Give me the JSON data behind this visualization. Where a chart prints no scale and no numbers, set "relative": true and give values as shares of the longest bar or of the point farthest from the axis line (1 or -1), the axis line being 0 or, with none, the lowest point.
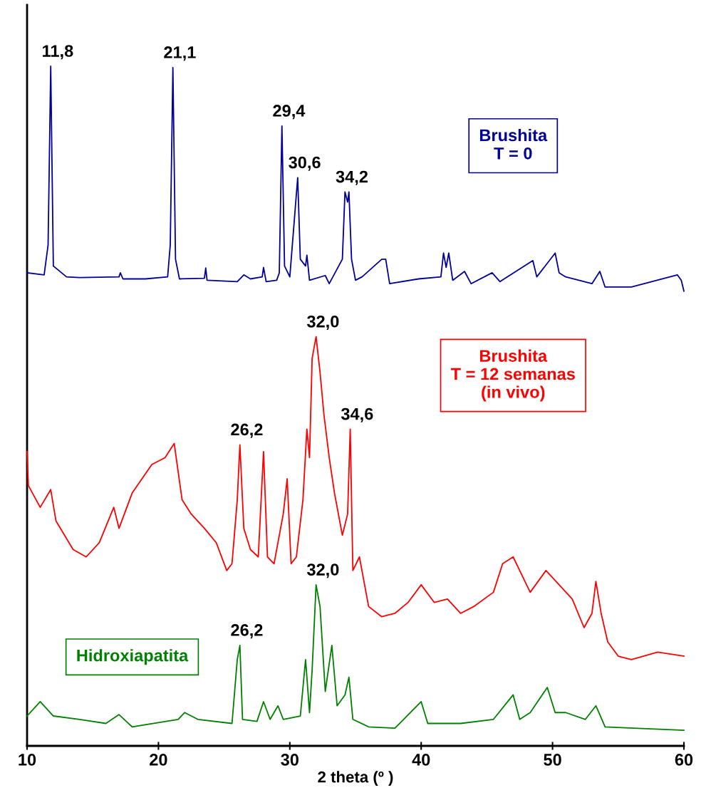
{
  "chart_data": {
    "type": "line",
    "relative": true,
    "xlabel": "2 theta (º )",
    "xlim": [
      10,
      60
    ],
    "xticks": [
      10,
      20,
      30,
      40,
      50,
      60
    ],
    "grid": false,
    "series": [
      {
        "name": "Brushita\nT = 0",
        "color": "#000099",
        "x": [
          10,
          11.3,
          11.6,
          11.8,
          12.0,
          13,
          14,
          17,
          17.1,
          17.3,
          19,
          20.7,
          20.9,
          21.1,
          21.3,
          21.6,
          23.5,
          23.6,
          23.7,
          26,
          26.5,
          27,
          27.9,
          28,
          28.2,
          29,
          29.2,
          29.4,
          29.6,
          30.0,
          30.6,
          30.8,
          31.2,
          31.3,
          31.5,
          32.7,
          33,
          34.0,
          34.2,
          34.4,
          34.5,
          34.7,
          35,
          35.5,
          37,
          37.3,
          37.6,
          39.8,
          41.5,
          41.7,
          41.9,
          42.1,
          42.4,
          43.3,
          43.8,
          45.4,
          46,
          48.5,
          48.8,
          50.2,
          50.5,
          51,
          53,
          53.6,
          54,
          56,
          59.5,
          59.8,
          60
        ],
        "values": [
          0.696,
          0.693,
          0.737,
          1,
          0.706,
          0.69,
          0.689,
          0.69,
          0.696,
          0.687,
          0.687,
          0.69,
          0.737,
          0.998,
          0.716,
          0.687,
          0.688,
          0.703,
          0.685,
          0.683,
          0.693,
          0.687,
          0.69,
          0.704,
          0.683,
          0.685,
          0.696,
          0.912,
          0.706,
          0.69,
          0.836,
          0.716,
          0.706,
          0.722,
          0.685,
          0.692,
          0.68,
          0.716,
          0.815,
          0.8,
          0.815,
          0.716,
          0.685,
          0.69,
          0.716,
          0.716,
          0.68,
          0.687,
          0.69,
          0.725,
          0.704,
          0.725,
          0.685,
          0.698,
          0.68,
          0.696,
          0.683,
          0.714,
          0.69,
          0.725,
          0.696,
          0.69,
          0.68,
          0.698,
          0.675,
          0.675,
          0.693,
          0.685,
          0.669
        ]
      },
      {
        "name": "Brushita\nT = 12 semanas\n(in vivo)",
        "color": "#ff0000",
        "x": [
          10,
          10.1,
          11,
          11.8,
          12.2,
          13.5,
          14.5,
          15.5,
          16.6,
          17,
          18,
          19.5,
          20.5,
          21.2,
          21.8,
          22.5,
          23.5,
          24.4,
          25.2,
          25.6,
          26.0,
          26.2,
          26.5,
          27,
          27.6,
          28,
          28.3,
          28.8,
          29.5,
          29.8,
          30.1,
          30.5,
          31.0,
          31.3,
          31.5,
          31.7,
          32.0,
          32.3,
          32.6,
          33,
          33.4,
          34,
          34.4,
          34.6,
          34.8,
          35.3,
          36,
          37,
          38,
          39,
          40,
          41,
          42,
          43,
          44,
          45.5,
          46.2,
          47,
          47.5,
          48.3,
          49.5,
          50.5,
          51.5,
          52.4,
          53,
          53.3,
          53.7,
          54.2,
          55,
          56,
          58,
          60
        ],
        "values": [
          0.433,
          0.383,
          0.351,
          0.377,
          0.331,
          0.289,
          0.278,
          0.299,
          0.351,
          0.32,
          0.372,
          0.414,
          0.424,
          0.445,
          0.362,
          0.341,
          0.32,
          0.299,
          0.258,
          0.268,
          0.362,
          0.443,
          0.32,
          0.289,
          0.278,
          0.433,
          0.278,
          0.268,
          0.341,
          0.393,
          0.268,
          0.278,
          0.362,
          0.466,
          0.424,
          0.57,
          0.602,
          0.55,
          0.487,
          0.424,
          0.372,
          0.31,
          0.341,
          0.466,
          0.258,
          0.278,
          0.205,
          0.19,
          0.195,
          0.211,
          0.237,
          0.211,
          0.216,
          0.195,
          0.205,
          0.226,
          0.268,
          0.278,
          0.258,
          0.226,
          0.258,
          0.237,
          0.216,
          0.174,
          0.195,
          0.242,
          0.195,
          0.153,
          0.132,
          0.127,
          0.138,
          0.132
        ]
      },
      {
        "name": "Hidroxiapatita",
        "color": "#008000",
        "x": [
          10,
          11,
          12,
          14,
          16,
          17,
          18,
          21.5,
          22,
          23,
          25.6,
          26.0,
          26.2,
          26.4,
          27.5,
          28,
          28.5,
          29.1,
          29.5,
          30.8,
          31.2,
          31.5,
          31.7,
          32.0,
          32.3,
          32.7,
          33.2,
          33.6,
          34.2,
          34.5,
          34.8,
          36,
          38,
          40,
          40.5,
          43,
          45.5,
          47,
          47.5,
          48.3,
          49.6,
          50.2,
          51,
          52.5,
          53.3,
          54,
          56.2,
          60
        ],
        "values": [
          0.044,
          0.065,
          0.044,
          0.039,
          0.033,
          0.046,
          0.028,
          0.039,
          0.049,
          0.039,
          0.033,
          0.127,
          0.148,
          0.039,
          0.036,
          0.065,
          0.039,
          0.059,
          0.039,
          0.044,
          0.127,
          0.049,
          0.112,
          0.237,
          0.205,
          0.08,
          0.148,
          0.059,
          0.075,
          0.101,
          0.039,
          0.028,
          0.026,
          0.065,
          0.033,
          0.033,
          0.039,
          0.075,
          0.039,
          0.049,
          0.086,
          0.049,
          0.049,
          0.039,
          0.059,
          0.028,
          0.026,
          0.023
        ]
      }
    ],
    "annotations": [
      {
        "text": "11,8",
        "x": 11.8,
        "y": 1
      },
      {
        "text": "21,1",
        "x": 21.1,
        "y": 0.998
      },
      {
        "text": "29,4",
        "x": 29.4,
        "y": 0.912
      },
      {
        "text": "30,6",
        "x": 30.6,
        "y": 0.836
      },
      {
        "text": "34,2",
        "x": 34.2,
        "y": 0.815
      },
      {
        "text": "32,0",
        "x": 32.0,
        "y": 0.602
      },
      {
        "text": "26,2",
        "x": 26.2,
        "y": 0.443
      },
      {
        "text": "34,6",
        "x": 34.6,
        "y": 0.466
      },
      {
        "text": "32,0",
        "x": 32.0,
        "y": 0.237
      },
      {
        "text": "26,2",
        "x": 26.2,
        "y": 0.148
      }
    ]
  }
}
